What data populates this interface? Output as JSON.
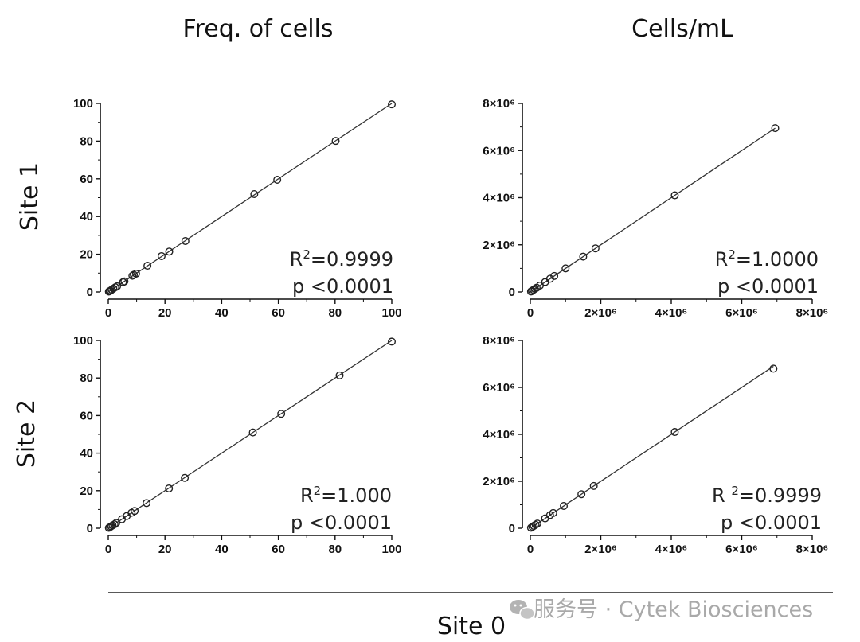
{
  "figure": {
    "column_titles": [
      "Freq. of cells",
      "Cells/mL"
    ],
    "row_titles": [
      "Site 1",
      "Site 2"
    ],
    "xlabel": "Site 0",
    "watermark": "服务号 · Cytek Biosciences",
    "watermark_icon": "wechat-icon"
  },
  "chart_data": [
    {
      "type": "scatter",
      "panel": "Site 1 / Freq. of cells",
      "xlabel": "Site 0",
      "ylabel": "Site 1",
      "xlim": [
        0,
        100
      ],
      "ylim": [
        0,
        100
      ],
      "xticks": [
        0,
        20,
        40,
        60,
        80,
        100
      ],
      "yticks": [
        0,
        20,
        40,
        60,
        80,
        100
      ],
      "xtick_labels": [
        "0",
        "20",
        "40",
        "60",
        "80",
        "100"
      ],
      "ytick_labels": [
        "0",
        "20",
        "40",
        "60",
        "80",
        "100"
      ],
      "stat_r2_prefix": "R",
      "stat_r2_sup": "2",
      "stat_r2_value": "=0.9999",
      "stat_p": "p <0.0001",
      "fit": {
        "slope": 1,
        "intercept": 0
      },
      "points": [
        [
          0.2,
          0.2
        ],
        [
          0.5,
          0.5
        ],
        [
          0.8,
          0.7
        ],
        [
          1.2,
          1.2
        ],
        [
          1.8,
          1.8
        ],
        [
          2.5,
          2.5
        ],
        [
          3.1,
          3.0
        ],
        [
          5.2,
          5.2
        ],
        [
          5.7,
          5.6
        ],
        [
          8.5,
          8.6
        ],
        [
          9.0,
          9.1
        ],
        [
          9.8,
          9.7
        ],
        [
          13.8,
          13.9
        ],
        [
          18.8,
          19.0
        ],
        [
          21.5,
          21.4
        ],
        [
          27.2,
          27.0
        ],
        [
          51.5,
          51.9
        ],
        [
          59.6,
          59.5
        ],
        [
          80.2,
          80.1
        ],
        [
          100,
          99.5
        ]
      ]
    },
    {
      "type": "scatter",
      "panel": "Site 1 / Cells/mL",
      "xlabel": "Site 0",
      "ylabel": "Site 1",
      "xlim": [
        0,
        8000000
      ],
      "ylim": [
        0,
        8000000
      ],
      "xticks": [
        0,
        2000000,
        4000000,
        6000000,
        8000000
      ],
      "yticks": [
        0,
        2000000,
        4000000,
        6000000,
        8000000
      ],
      "xtick_labels": [
        "0",
        "2×10⁶",
        "4×10⁶",
        "6×10⁶",
        "8×10⁶"
      ],
      "ytick_labels": [
        "0",
        "2×10⁶",
        "4×10⁶",
        "6×10⁶",
        "8×10⁶"
      ],
      "stat_r2_prefix": "R",
      "stat_r2_sup": "2",
      "stat_r2_value": "=1.0000",
      "stat_p": "p <0.0001",
      "fit": {
        "slope": 1,
        "intercept": 0
      },
      "points": [
        [
          20000,
          20000
        ],
        [
          50000,
          50000
        ],
        [
          90000,
          90000
        ],
        [
          130000,
          130000
        ],
        [
          180000,
          180000
        ],
        [
          270000,
          270000
        ],
        [
          420000,
          420000
        ],
        [
          560000,
          560000
        ],
        [
          680000,
          680000
        ],
        [
          1000000,
          1000000
        ],
        [
          1500000,
          1500000
        ],
        [
          1850000,
          1850000
        ],
        [
          4100000,
          4100000
        ],
        [
          6950000,
          6950000
        ]
      ]
    },
    {
      "type": "scatter",
      "panel": "Site 2 / Freq. of cells",
      "xlabel": "Site 0",
      "ylabel": "Site 2",
      "xlim": [
        0,
        100
      ],
      "ylim": [
        0,
        100
      ],
      "xticks": [
        0,
        20,
        40,
        60,
        80,
        100
      ],
      "yticks": [
        0,
        20,
        40,
        60,
        80,
        100
      ],
      "xtick_labels": [
        "0",
        "20",
        "40",
        "60",
        "80",
        "100"
      ],
      "ytick_labels": [
        "0",
        "20",
        "40",
        "60",
        "80",
        "100"
      ],
      "stat_r2_prefix": "R",
      "stat_r2_sup": "2",
      "stat_r2_value": "=1.000",
      "stat_p": "p <0.0001",
      "fit": {
        "slope": 1,
        "intercept": 0
      },
      "points": [
        [
          0.2,
          0.2
        ],
        [
          0.6,
          0.6
        ],
        [
          1.0,
          1.0
        ],
        [
          1.5,
          1.5
        ],
        [
          2.2,
          2.1
        ],
        [
          2.8,
          2.8
        ],
        [
          4.8,
          4.8
        ],
        [
          6.5,
          6.5
        ],
        [
          8.2,
          8.2
        ],
        [
          9.3,
          9.2
        ],
        [
          13.5,
          13.4
        ],
        [
          21.4,
          21.2
        ],
        [
          27.0,
          26.8
        ],
        [
          51.0,
          51.0
        ],
        [
          61.0,
          60.9
        ],
        [
          81.6,
          81.4
        ],
        [
          100,
          99.4
        ]
      ]
    },
    {
      "type": "scatter",
      "panel": "Site 2 / Cells/mL",
      "xlabel": "Site 0",
      "ylabel": "Site 2",
      "xlim": [
        0,
        8000000
      ],
      "ylim": [
        0,
        8000000
      ],
      "xticks": [
        0,
        2000000,
        4000000,
        6000000,
        8000000
      ],
      "yticks": [
        0,
        2000000,
        4000000,
        6000000,
        8000000
      ],
      "xtick_labels": [
        "0",
        "2×10⁶",
        "4×10⁶",
        "6×10⁶",
        "8×10⁶"
      ],
      "ytick_labels": [
        "0",
        "2×10⁶",
        "4×10⁶",
        "6×10⁶",
        "8×10⁶"
      ],
      "stat_r2_prefix": "R ",
      "stat_r2_sup": "2",
      "stat_r2_value": "=0.9999",
      "stat_p": "p <0.0001",
      "fit": {
        "slope": 1,
        "intercept": 0
      },
      "points": [
        [
          20000,
          20000
        ],
        [
          60000,
          60000
        ],
        [
          100000,
          100000
        ],
        [
          150000,
          150000
        ],
        [
          200000,
          200000
        ],
        [
          420000,
          420000
        ],
        [
          560000,
          560000
        ],
        [
          650000,
          650000
        ],
        [
          950000,
          950000
        ],
        [
          1450000,
          1450000
        ],
        [
          1800000,
          1800000
        ],
        [
          4100000,
          4100000
        ],
        [
          6900000,
          6800000
        ]
      ]
    }
  ]
}
